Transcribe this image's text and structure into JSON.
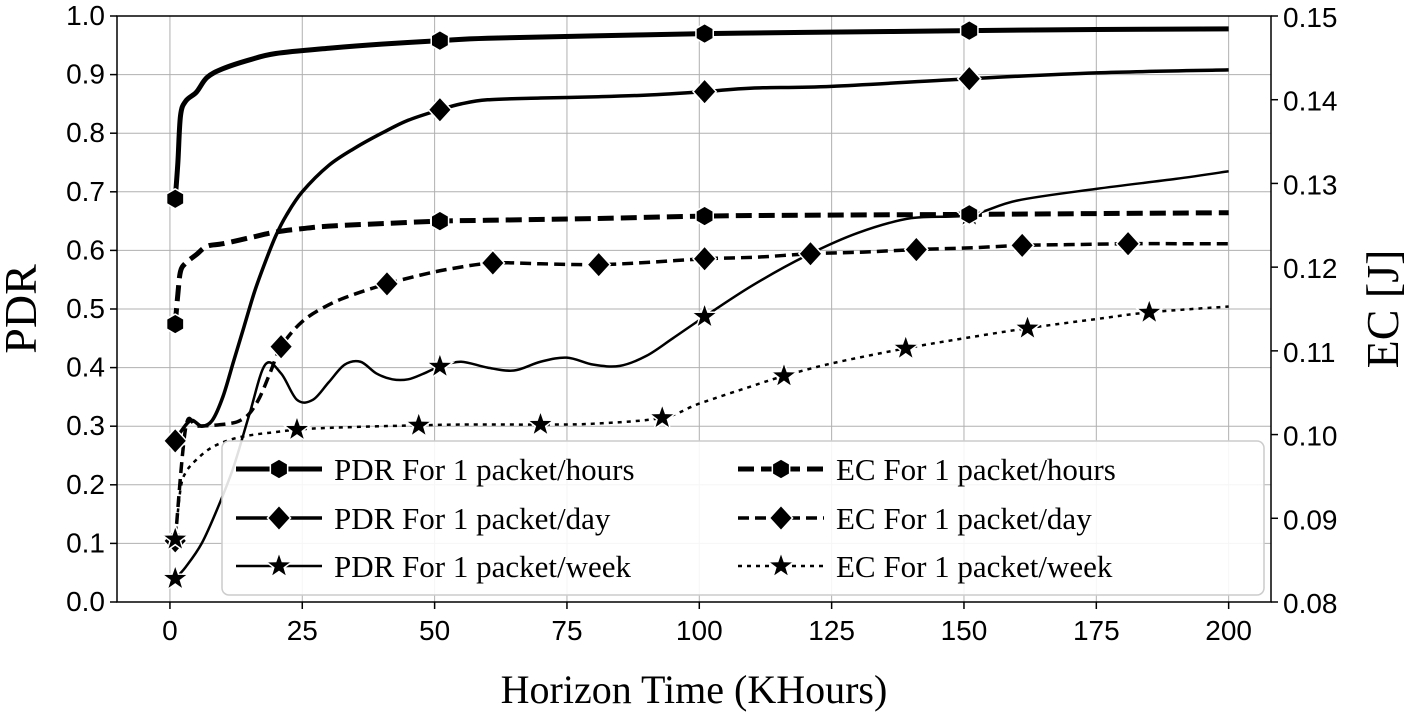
{
  "chart_data": {
    "type": "line",
    "xlabel": "Horizon Time (KHours)",
    "ylabel": "PDR",
    "y2label": "EC [J]",
    "xlim": [
      -10,
      208
    ],
    "ylim": [
      0.0,
      1.0
    ],
    "y2lim": [
      0.08,
      0.15
    ],
    "xticks": [
      0,
      25,
      50,
      75,
      100,
      125,
      150,
      175,
      200
    ],
    "xtick_labels": [
      "0",
      "25",
      "50",
      "75",
      "100",
      "125",
      "150",
      "175",
      "200"
    ],
    "yticks": [
      0.0,
      0.1,
      0.2,
      0.3,
      0.4,
      0.5,
      0.6,
      0.7,
      0.8,
      0.9,
      1.0
    ],
    "ytick_labels": [
      "0.0",
      "0.1",
      "0.2",
      "0.3",
      "0.4",
      "0.5",
      "0.6",
      "0.7",
      "0.8",
      "0.9",
      "1.0"
    ],
    "y2ticks": [
      0.08,
      0.09,
      0.1,
      0.11,
      0.12,
      0.13,
      0.14,
      0.15
    ],
    "y2tick_labels": [
      "0.08",
      "0.09",
      "0.10",
      "0.11",
      "0.12",
      "0.13",
      "0.14",
      "0.15"
    ],
    "grid": true,
    "legend_position": "bottom-right",
    "legend_columns": 2,
    "series": [
      {
        "name": "PDR For 1 packet/hours",
        "axis": "left",
        "line_style": "solid",
        "line_width": "thick",
        "marker": "hexagon",
        "color": "#000000",
        "x": [
          1,
          1.5,
          2,
          3,
          5,
          7,
          10,
          15,
          20,
          30,
          40,
          51,
          60,
          80,
          101,
          120,
          151,
          175,
          200
        ],
        "y": [
          0.688,
          0.75,
          0.83,
          0.855,
          0.87,
          0.895,
          0.91,
          0.925,
          0.936,
          0.945,
          0.952,
          0.958,
          0.962,
          0.966,
          0.97,
          0.972,
          0.975,
          0.977,
          0.978
        ],
        "marker_x": [
          1,
          51,
          101,
          151
        ],
        "marker_y": [
          0.688,
          0.958,
          0.97,
          0.975
        ]
      },
      {
        "name": "PDR For 1 packet/day",
        "axis": "left",
        "line_style": "solid",
        "line_width": "medium",
        "marker": "diamond",
        "color": "#000000",
        "x": [
          1,
          2,
          4,
          6,
          8,
          10,
          12,
          14,
          16,
          18,
          20,
          22,
          25,
          30,
          35,
          40,
          45,
          51,
          55,
          60,
          70,
          80,
          90,
          101,
          110,
          125,
          151,
          175,
          200
        ],
        "y": [
          0.275,
          0.29,
          0.31,
          0.3,
          0.31,
          0.35,
          0.41,
          0.47,
          0.53,
          0.58,
          0.625,
          0.66,
          0.7,
          0.745,
          0.775,
          0.8,
          0.822,
          0.84,
          0.85,
          0.857,
          0.86,
          0.862,
          0.865,
          0.871,
          0.877,
          0.88,
          0.893,
          0.903,
          0.908
        ],
        "marker_x": [
          1,
          51,
          101,
          151
        ],
        "marker_y": [
          0.275,
          0.84,
          0.871,
          0.893
        ]
      },
      {
        "name": "PDR For 1 packet/week",
        "axis": "left",
        "line_style": "solid",
        "line_width": "thin",
        "marker": "star",
        "color": "#000000",
        "x": [
          1,
          3,
          6,
          9,
          12,
          15,
          18,
          21,
          24,
          27,
          30,
          33,
          36,
          39,
          42,
          45,
          48,
          51,
          55,
          60,
          65,
          70,
          75,
          80,
          85,
          90,
          95,
          101,
          110,
          120,
          130,
          140,
          151,
          160,
          175,
          190,
          200
        ],
        "y": [
          0.04,
          0.06,
          0.1,
          0.16,
          0.23,
          0.32,
          0.405,
          0.39,
          0.345,
          0.345,
          0.375,
          0.405,
          0.41,
          0.39,
          0.38,
          0.38,
          0.39,
          0.402,
          0.41,
          0.4,
          0.395,
          0.41,
          0.417,
          0.405,
          0.403,
          0.42,
          0.45,
          0.487,
          0.54,
          0.59,
          0.63,
          0.655,
          0.66,
          0.685,
          0.705,
          0.722,
          0.735
        ],
        "marker_x": [
          1,
          51,
          101,
          151
        ],
        "marker_y": [
          0.04,
          0.402,
          0.487,
          0.66
        ]
      },
      {
        "name": "EC For 1 packet/hours",
        "axis": "right",
        "line_style": "dashed",
        "line_width": "thick",
        "marker": "hexagon",
        "color": "#000000",
        "x": [
          1,
          1.5,
          2,
          3,
          5,
          7,
          10,
          15,
          20,
          25,
          30,
          40,
          51,
          60,
          80,
          101,
          120,
          151,
          175,
          200
        ],
        "y": [
          0.1132,
          0.1168,
          0.1195,
          0.1205,
          0.1215,
          0.1225,
          0.1228,
          0.1235,
          0.1242,
          0.1246,
          0.1249,
          0.1252,
          0.1255,
          0.1256,
          0.1258,
          0.1261,
          0.1262,
          0.1263,
          0.1264,
          0.1265
        ],
        "marker_x": [
          1,
          51,
          101,
          151
        ],
        "marker_y": [
          0.1132,
          0.1255,
          0.1261,
          0.1263
        ]
      },
      {
        "name": "EC For 1 packet/day",
        "axis": "right",
        "line_style": "dashed",
        "line_width": "medium",
        "marker": "diamond",
        "color": "#000000",
        "x": [
          1,
          3,
          5,
          8,
          11,
          13,
          15,
          17,
          19,
          21,
          25,
          30,
          35,
          41,
          47,
          53,
          61,
          70,
          81,
          91,
          101,
          111,
          121,
          131,
          141,
          151,
          161,
          171,
          181,
          191,
          200
        ],
        "y": [
          0.0873,
          0.1009,
          0.101,
          0.1011,
          0.1013,
          0.1016,
          0.1025,
          0.1045,
          0.1075,
          0.1105,
          0.1135,
          0.1155,
          0.1168,
          0.118,
          0.119,
          0.1198,
          0.1205,
          0.1204,
          0.1203,
          0.1206,
          0.121,
          0.1212,
          0.1216,
          0.1218,
          0.1221,
          0.1223,
          0.1226,
          0.1227,
          0.1228,
          0.1228,
          0.1228
        ],
        "marker_x": [
          1,
          21,
          41,
          61,
          81,
          101,
          121,
          141,
          161,
          181
        ],
        "marker_y": [
          0.0873,
          0.1105,
          0.118,
          0.1205,
          0.1203,
          0.121,
          0.1216,
          0.1221,
          0.1226,
          0.1228
        ]
      },
      {
        "name": "EC For 1 packet/week",
        "axis": "right",
        "line_style": "dotted",
        "line_width": "thin",
        "marker": "star",
        "color": "#000000",
        "x": [
          1,
          2,
          3,
          5,
          8,
          12,
          16,
          20,
          24,
          30,
          40,
          47,
          55,
          70,
          80,
          93,
          100,
          110,
          116,
          125,
          139,
          150,
          162,
          175,
          185,
          200
        ],
        "y": [
          0.0875,
          0.0935,
          0.0955,
          0.097,
          0.0985,
          0.0995,
          0.1,
          0.1003,
          0.1006,
          0.1008,
          0.101,
          0.1011,
          0.1012,
          0.1012,
          0.1013,
          0.102,
          0.1037,
          0.1058,
          0.107,
          0.1085,
          0.1103,
          0.1115,
          0.1127,
          0.1138,
          0.1146,
          0.1153
        ],
        "marker_x": [
          1,
          24,
          47,
          70,
          93,
          116,
          139,
          162,
          185
        ],
        "marker_y": [
          0.0875,
          0.1006,
          0.1011,
          0.1012,
          0.102,
          0.107,
          0.1103,
          0.1127,
          0.1146
        ]
      }
    ]
  }
}
